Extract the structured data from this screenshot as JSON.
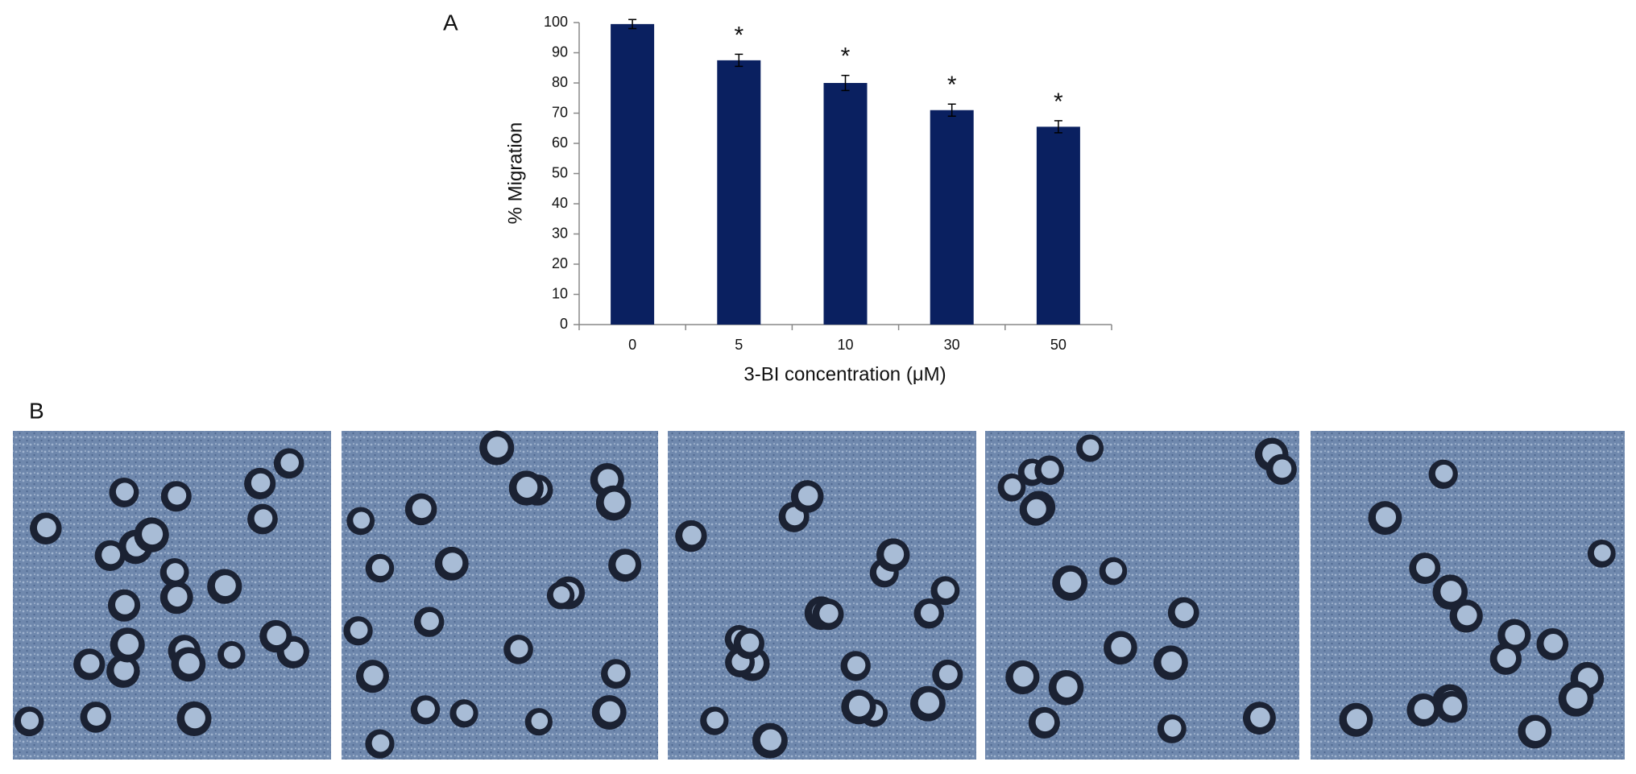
{
  "chart_data": {
    "type": "bar",
    "panel_label": "A",
    "y_label": "% Migration",
    "x_label": "3-BI concentration (μM)",
    "categories": [
      "0",
      "5",
      "10",
      "30",
      "50"
    ],
    "values": [
      99.5,
      87.5,
      80,
      71,
      65.5
    ],
    "errors": [
      1.5,
      2,
      2.5,
      2,
      2
    ],
    "significance": [
      null,
      "*",
      "*",
      "*",
      "*"
    ],
    "color": "#0a2060",
    "ylim": [
      0,
      100
    ],
    "yticks": [
      0,
      10,
      20,
      30,
      40,
      50,
      60,
      70,
      80,
      90,
      100
    ],
    "grid": false
  },
  "panel_b": {
    "label": "B"
  }
}
